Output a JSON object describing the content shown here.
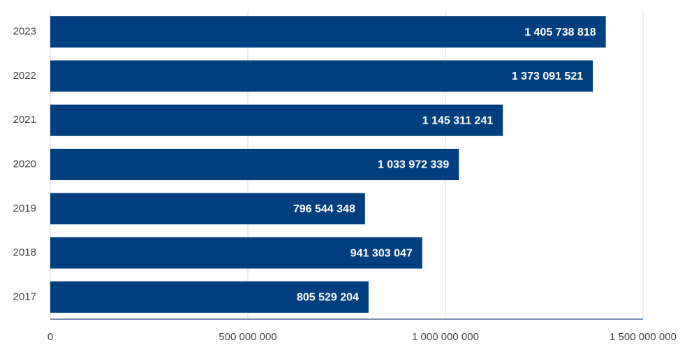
{
  "chart_data": {
    "type": "barh",
    "categories": [
      "2023",
      "2022",
      "2021",
      "2020",
      "2019",
      "2018",
      "2017"
    ],
    "values": [
      1405738818,
      1373091521,
      1145311241,
      1033972339,
      796544348,
      941303047,
      805529204
    ],
    "value_labels": [
      "1 405 738 818",
      "1 373 091 521",
      "1 145 311 241",
      "1 033 972 339",
      "796 544 348",
      "941 303 047",
      "805 529 204"
    ],
    "color": "#003f7f",
    "xlim": [
      0,
      1500000000
    ],
    "xticks": [
      0,
      {
        "value": 500000000,
        "label": "500 000 000"
      },
      {
        "value": 1000000000,
        "label": "1 000 000 000"
      },
      {
        "value": 1500000000,
        "label": "1 500 000 000"
      }
    ],
    "grid": true
  }
}
